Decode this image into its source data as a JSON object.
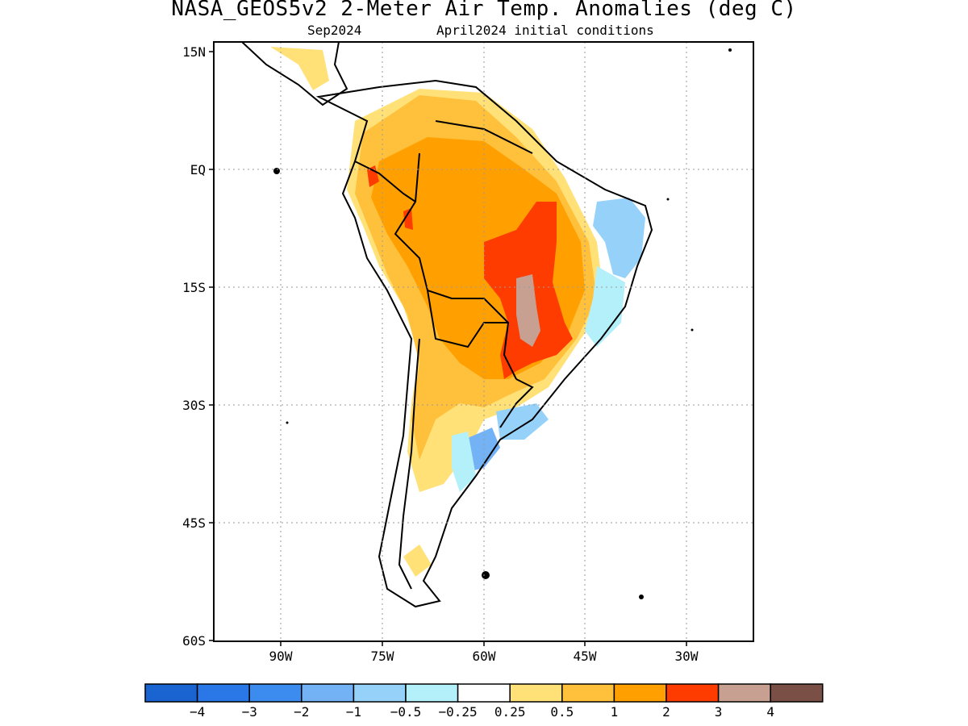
{
  "title": "NASA_GEOS5v2 2-Meter Air Temp. Anomalies (deg C)",
  "subtitle_left": "Sep2024",
  "subtitle_right": "April2024 initial conditions",
  "lat_labels": [
    "15N",
    "EQ",
    "15S",
    "30S",
    "45S",
    "60S"
  ],
  "lon_labels": [
    "90W",
    "75W",
    "60W",
    "45W",
    "30W"
  ],
  "colorbar": {
    "colors": [
      "#1a64d2",
      "#2a78e8",
      "#3c8cf0",
      "#73b3f5",
      "#96d1fa",
      "#b4f0fa",
      "#ffffff",
      "#ffe178",
      "#ffc03c",
      "#ffa000",
      "#ff3c00",
      "#c8a092",
      "#7a4f45"
    ],
    "labels": [
      "−4",
      "−3",
      "−2",
      "−1",
      "−0.5",
      "−0.25",
      "0.25",
      "0.5",
      "1",
      "2",
      "3",
      "4"
    ]
  }
}
